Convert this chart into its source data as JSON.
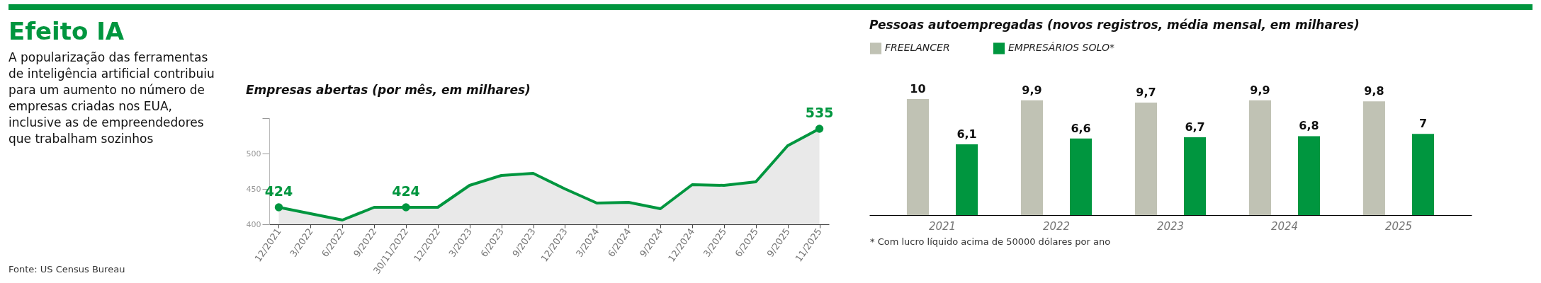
{
  "chart_data": [
    {
      "type": "other",
      "title": "Efeito IA",
      "subtitle": "A popularização das ferramentas de inteligência artificial contribuiu para um aumento no número de empresas criadas nos EUA, inclusive as de empreendedores que trabalham sozinhos",
      "annotations": [
        "Fonte: US Census Bureau"
      ]
    },
    {
      "type": "area",
      "title": "Empresas abertas (por mês, em milhares)",
      "categories": [
        "12/2021",
        "3/2022",
        "6/2022",
        "9/2022",
        "30/11/2022",
        "12/2022",
        "3/2023",
        "6/2023",
        "9/2023",
        "12/2023",
        "3/2024",
        "6/2024",
        "9/2024",
        "12/2024",
        "3/2025",
        "6/2025",
        "9/2025",
        "11/2025"
      ],
      "values": [
        424,
        415,
        406,
        424,
        424,
        424,
        455,
        469,
        472,
        450,
        430,
        431,
        422,
        456,
        455,
        460,
        511,
        535
      ],
      "value_labels": [
        "424",
        null,
        null,
        null,
        "424",
        null,
        null,
        null,
        null,
        null,
        null,
        null,
        null,
        null,
        null,
        null,
        null,
        "535"
      ],
      "color": "#00963f",
      "ylim": [
        400,
        550
      ],
      "yticks": [
        400,
        450,
        500,
        {
          "value": 550,
          "label": null
        }
      ]
    },
    {
      "type": "bar",
      "title": "Pessoas autoempregadas (novos registros, média mensal, em milhares)",
      "categories": [
        "2021",
        "2022",
        "2023",
        "2024",
        "2025"
      ],
      "series": [
        {
          "name": "FREELANCER",
          "color": "#c0c2b4",
          "values": [
            10,
            9.9,
            9.7,
            9.9,
            9.8
          ],
          "value_labels": [
            "10",
            "9,9",
            "9,7",
            "9,9",
            "9,8"
          ]
        },
        {
          "name": "EMPRESÁRIOS SOLO*",
          "color": "#00963f",
          "values": [
            6.1,
            6.6,
            6.7,
            6.8,
            7
          ],
          "value_labels": [
            "6,1",
            "6,6",
            "6,7",
            "6,8",
            "7"
          ]
        }
      ],
      "legend": "top left",
      "annotations": [
        "* Com lucro líquido acima de 50000 dólares por ano"
      ]
    }
  ]
}
